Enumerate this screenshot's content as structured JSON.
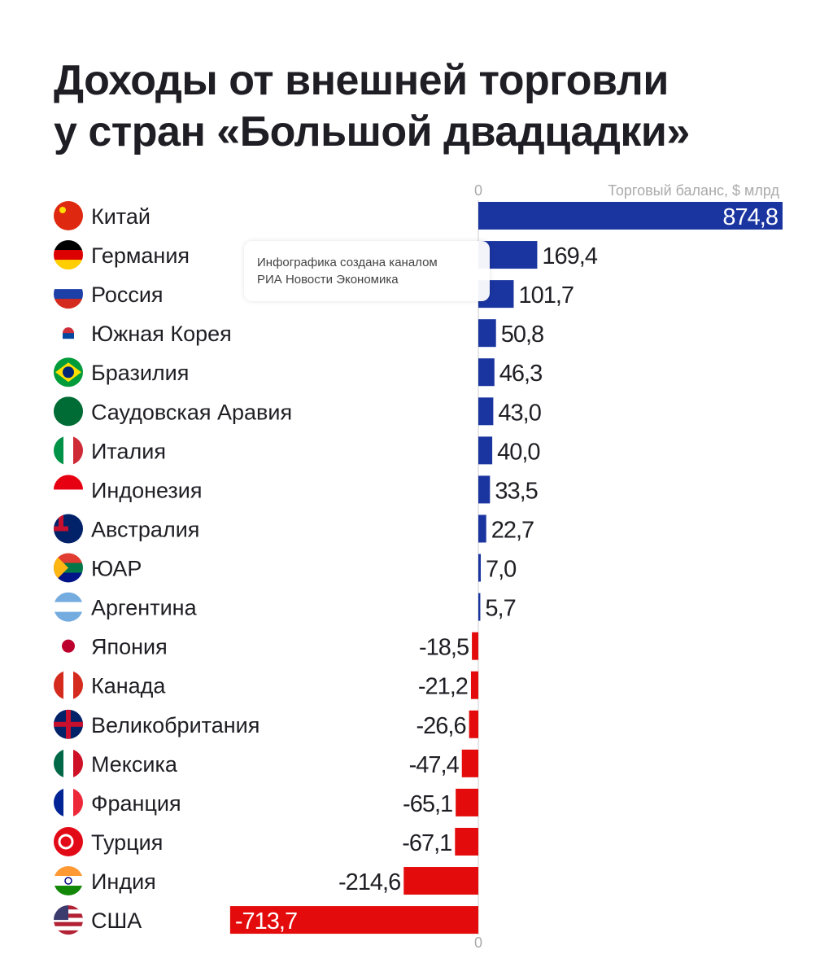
{
  "title_lines": [
    "Доходы от внешней торговли",
    "у стран «Большой двадцадки»"
  ],
  "watermark_lines": [
    "Инфографика создана каналом",
    "РИА Новости Экономика"
  ],
  "chart_data": {
    "type": "bar",
    "orientation": "horizontal",
    "title": "Доходы от внешней торговли у стран «Большой двадцадки»",
    "xlabel": "Торговый баланс, $ млрд",
    "zero_tick_label": "0",
    "categories": [
      "Китай",
      "Германия",
      "Россия",
      "Южная Корея",
      "Бразилия",
      "Саудовская Аравия",
      "Италия",
      "Индонезия",
      "Австралия",
      "ЮАР",
      "Аргентина",
      "Япония",
      "Канада",
      "Великобритания",
      "Мексика",
      "Франция",
      "Турция",
      "Индия",
      "США"
    ],
    "values": [
      874.8,
      169.4,
      101.7,
      50.8,
      46.3,
      43.0,
      40.0,
      33.5,
      22.7,
      7.0,
      5.7,
      -18.5,
      -21.2,
      -26.6,
      -47.4,
      -65.1,
      -67.1,
      -214.6,
      -713.7
    ],
    "value_labels": [
      "874,8",
      "169,4",
      "101,7",
      "50,8",
      "46,3",
      "43,0",
      "40,0",
      "33,5",
      "22,7",
      "7,0",
      "5,7",
      "-18,5",
      "-21,2",
      "-26,6",
      "-47,4",
      "-65,1",
      "-67,1",
      "-214,6",
      "-713,7"
    ],
    "flag_icons": [
      "flag-china",
      "flag-germany",
      "flag-russia",
      "flag-south-korea",
      "flag-brazil",
      "flag-saudi-arabia",
      "flag-italy",
      "flag-indonesia",
      "flag-australia",
      "flag-south-africa",
      "flag-argentina",
      "flag-japan",
      "flag-canada",
      "flag-uk",
      "flag-mexico",
      "flag-france",
      "flag-turkey",
      "flag-india",
      "flag-usa"
    ],
    "xlim": [
      -713.7,
      874.8
    ],
    "grid": false,
    "colors": {
      "positive": "#1a35a0",
      "negative": "#e30b0b",
      "text": "#1e1e24",
      "axis": "#aaaaaa"
    }
  }
}
